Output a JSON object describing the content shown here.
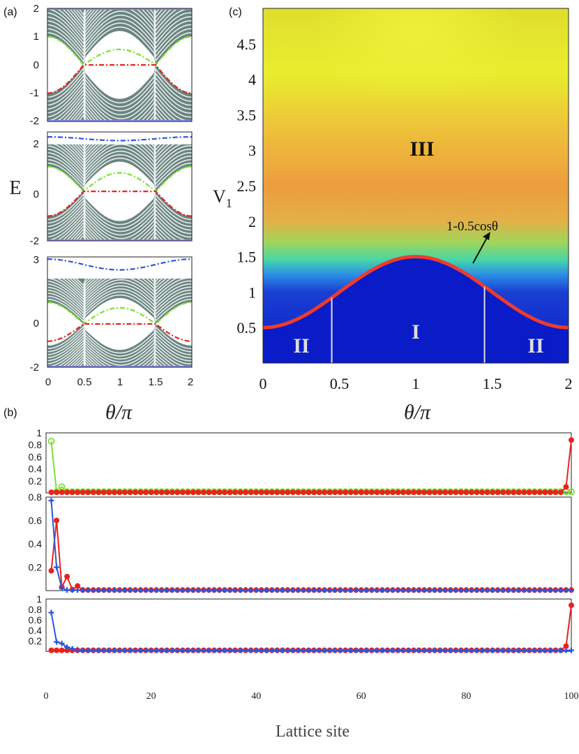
{
  "labels": {
    "panel_a": "(a)",
    "panel_b": "(b)",
    "panel_c": "(c)",
    "a_ylabel": "E",
    "a_xlabel": "θ/π",
    "c_ylabel": "V",
    "c_ylabel_sub": "1",
    "c_xlabel": "θ/π",
    "b_xlabel": "Lattice site",
    "region_I": "I",
    "region_II_left": "II",
    "region_II_right": "II",
    "region_III": "III",
    "boundary_formula": "1-0.5cosθ"
  },
  "colors": {
    "band": "#6a8580",
    "green": "#7be030",
    "red": "#e8231c",
    "blue": "#2b55e0",
    "phase_I": "#0a1cc8",
    "boundary": "#ee3b2c",
    "region_text": "#e6e6e6"
  },
  "chart_data": [
    {
      "panel": "a-top",
      "type": "line",
      "xlim": [
        0,
        2
      ],
      "ylim": [
        -2,
        2
      ],
      "xticks": [
        "0",
        "0.5",
        "1",
        "1.5",
        "2"
      ],
      "yticks": [
        "-2",
        "-1",
        "0",
        "1",
        "2"
      ],
      "series": [
        {
          "color": "green",
          "x": [
            0,
            0.5,
            1,
            1.5,
            2
          ],
          "y": [
            1,
            0,
            0.55,
            0,
            1
          ]
        },
        {
          "color": "red",
          "x": [
            0,
            0.5,
            1,
            1.5,
            2
          ],
          "y": [
            -1,
            0,
            0,
            0,
            -1
          ]
        }
      ]
    },
    {
      "panel": "a-middle",
      "type": "line",
      "xlim": [
        0,
        2
      ],
      "ylim": [
        -2,
        2.4
      ],
      "yticks": [
        "-2",
        "0",
        "2"
      ],
      "series": [
        {
          "color": "blue",
          "x": [
            0,
            0.5,
            1,
            1.5,
            2
          ],
          "y": [
            2.2,
            2.05,
            2.05,
            2.05,
            2.2
          ]
        },
        {
          "color": "green",
          "x": [
            0,
            0.5,
            1,
            1.5,
            2
          ],
          "y": [
            1,
            0,
            0.75,
            0,
            1
          ]
        },
        {
          "color": "red",
          "x": [
            0,
            0.5,
            1,
            1.5,
            2
          ],
          "y": [
            -1,
            0,
            0,
            0,
            -1
          ]
        }
      ]
    },
    {
      "panel": "a-bottom",
      "type": "line",
      "xlim": [
        0,
        2
      ],
      "ylim": [
        -2,
        3.1
      ],
      "yticks": [
        "-2",
        "0",
        "3"
      ],
      "series": [
        {
          "color": "blue",
          "x": [
            0,
            0.5,
            1,
            1.5,
            2
          ],
          "y": [
            3,
            2.75,
            2.5,
            2.75,
            3
          ]
        },
        {
          "color": "green",
          "x": [
            0,
            0.5,
            1,
            1.5,
            2
          ],
          "y": [
            1,
            0,
            0.75,
            0,
            1
          ]
        },
        {
          "color": "red",
          "x": [
            0,
            0.5,
            1,
            1.5,
            2
          ],
          "y": [
            -0.8,
            0,
            0,
            0,
            -0.8
          ]
        }
      ]
    },
    {
      "panel": "c",
      "type": "heatmap",
      "xlim": [
        0,
        2
      ],
      "ylim": [
        0,
        5
      ],
      "xticks": [
        "0",
        "0.5",
        "1",
        "1.5",
        "2"
      ],
      "yticks": [
        "0.5",
        "1",
        "1.5",
        "2",
        "2.5",
        "3",
        "3.5",
        "4",
        "4.5"
      ],
      "boundary": "V1 = 1 - 0.5cos(θ)",
      "vertical_lines_x": [
        0.45,
        1.45
      ]
    },
    {
      "panel": "b-top",
      "type": "line",
      "xlim": [
        0,
        100
      ],
      "ylim": [
        0,
        1
      ],
      "yticks": [
        "0.2",
        "0.4",
        "0.6",
        "0.8",
        "1"
      ],
      "series": [
        {
          "color": "green",
          "marker": "open-circle",
          "head": [
            0.86,
            0.02,
            0.1
          ],
          "tail": [
            0.02
          ],
          "rest": 0.02
        },
        {
          "color": "red",
          "marker": "dot",
          "head": [
            0.01,
            0.01,
            0.01
          ],
          "tail": [
            0.1,
            0.88
          ],
          "rest": 0.01
        }
      ]
    },
    {
      "panel": "b-middle",
      "type": "line",
      "xlim": [
        0,
        100
      ],
      "ylim": [
        0,
        0.8
      ],
      "yticks": [
        "0.2",
        "0.4",
        "0.6",
        "0.8"
      ],
      "series": [
        {
          "color": "red",
          "marker": "dot",
          "head": [
            0.17,
            0.6,
            0.03,
            0.12,
            0.01,
            0.04
          ],
          "tail": [
            0.005
          ],
          "rest": 0.005
        },
        {
          "color": "blue",
          "marker": "plus",
          "head": [
            0.77,
            0.2,
            0.02
          ],
          "tail": [
            0.005
          ],
          "rest": 0.005
        }
      ]
    },
    {
      "panel": "b-bottom",
      "type": "line",
      "xlim": [
        0,
        100
      ],
      "ylim": [
        0,
        1
      ],
      "xticks": [
        "0",
        "20",
        "40",
        "60",
        "80",
        "100"
      ],
      "yticks": [
        "0.2",
        "0.4",
        "0.6",
        "0.8",
        "1"
      ],
      "series": [
        {
          "color": "red",
          "marker": "dot",
          "head": [
            0.02,
            0.02,
            0.02,
            0.02
          ],
          "tail": [
            0.1,
            0.88
          ],
          "rest": 0.02
        },
        {
          "color": "blue",
          "marker": "plus",
          "head": [
            0.74,
            0.18,
            0.15,
            0.08,
            0.05,
            0.03
          ],
          "tail": [
            0.02
          ],
          "rest": 0.02
        }
      ]
    }
  ]
}
